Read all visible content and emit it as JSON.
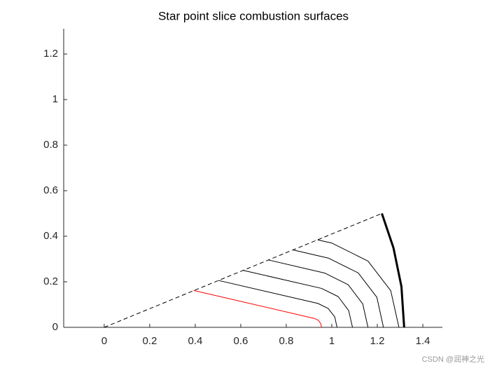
{
  "chart_data": {
    "type": "line",
    "title": "Star point slice combustion surfaces",
    "xlim": [
      -0.178,
      1.486
    ],
    "ylim": [
      0,
      1.311
    ],
    "xticks": [
      0,
      0.2,
      0.4,
      0.6,
      0.8,
      1,
      1.2,
      1.4
    ],
    "yticks": [
      0,
      0.2,
      0.4,
      0.6,
      0.8,
      1,
      1.2
    ],
    "grid": false,
    "series": [
      {
        "color": "#000000",
        "style": "dashed",
        "width": 1,
        "x": [
          0,
          1.22
        ],
        "y": [
          0,
          0.5
        ]
      },
      {
        "color": "#ff0000",
        "style": "solid",
        "width": 1,
        "x": [
          0.393,
          0.924,
          0.941,
          0.951,
          0.955
        ],
        "y": [
          0.162,
          0.039,
          0.031,
          0.017,
          0
        ]
      },
      {
        "color": "#000000",
        "style": "solid",
        "width": 1,
        "x": [
          0.502,
          0.939,
          0.984,
          1.013,
          1.023
        ],
        "y": [
          0.206,
          0.105,
          0.083,
          0.046,
          0
        ]
      },
      {
        "color": "#000000",
        "style": "solid",
        "width": 1,
        "x": [
          0.611,
          0.955,
          1.028,
          1.074,
          1.091
        ],
        "y": [
          0.25,
          0.171,
          0.135,
          0.074,
          0
        ]
      },
      {
        "color": "#000000",
        "style": "solid",
        "width": 1,
        "x": [
          0.721,
          0.97,
          1.072,
          1.136,
          1.159
        ],
        "y": [
          0.296,
          0.238,
          0.187,
          0.103,
          0
        ]
      },
      {
        "color": "#000000",
        "style": "solid",
        "width": 1,
        "x": [
          0.829,
          0.985,
          1.116,
          1.198,
          1.227
        ],
        "y": [
          0.34,
          0.304,
          0.239,
          0.132,
          0
        ]
      },
      {
        "color": "#000000",
        "style": "solid",
        "width": 1,
        "x": [
          0.938,
          1.0005,
          1.159,
          1.259,
          1.295
        ],
        "y": [
          0.384,
          0.37,
          0.291,
          0.161,
          0
        ]
      },
      {
        "color": "#000000",
        "style": "solid",
        "width": 3,
        "x": [
          1.318,
          1.306,
          1.271,
          1.22
        ],
        "y": [
          0,
          0.179,
          0.349,
          0.5
        ]
      }
    ],
    "watermark": "CSDN @润神之光"
  }
}
